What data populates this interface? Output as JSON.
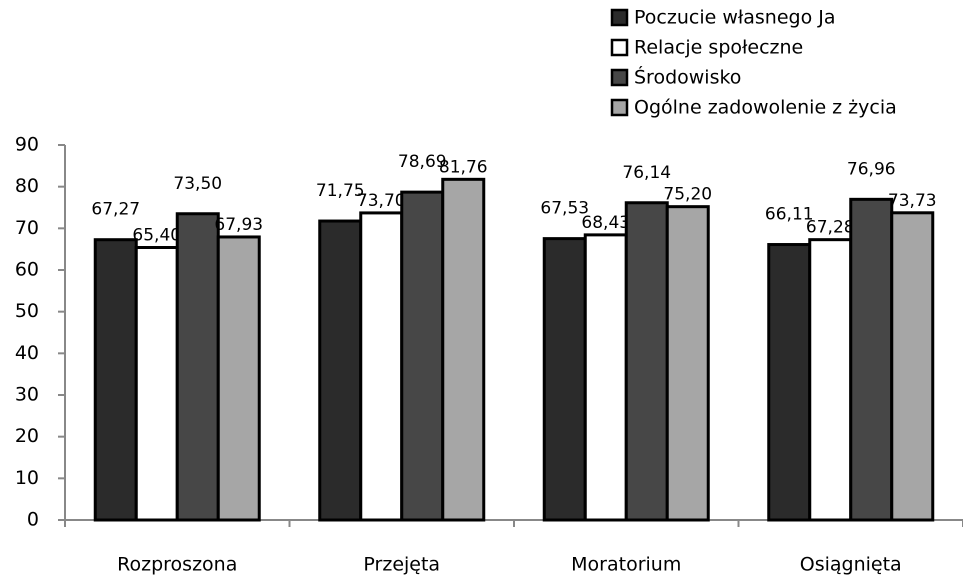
{
  "chart_data": {
    "type": "bar",
    "categories": [
      "Rozproszona",
      "Przejęta",
      "Moratorium",
      "Osiągnięta"
    ],
    "series": [
      {
        "name": "Poczucie własnego Ja",
        "color": "#2b2b2b",
        "values": [
          67.27,
          71.75,
          67.53,
          66.11
        ],
        "value_labels": [
          "67,27",
          "71,75",
          "67,53",
          "66,11"
        ]
      },
      {
        "name": "Relacje społeczne",
        "color": "#ffffff",
        "values": [
          65.4,
          73.7,
          68.43,
          67.28
        ],
        "value_labels": [
          "65,40",
          "73,70",
          "68,43",
          "67,28"
        ]
      },
      {
        "name": "Środowisko",
        "color": "#474747",
        "values": [
          73.5,
          78.69,
          76.14,
          76.96
        ],
        "value_labels": [
          "73,50",
          "78,69",
          "76,14",
          "76,96"
        ]
      },
      {
        "name": "Ogólne zadowolenie z życia",
        "color": "#a6a6a6",
        "values": [
          67.93,
          81.76,
          75.2,
          73.73
        ],
        "value_labels": [
          "67,93",
          "81,76",
          "75,20",
          "73,73"
        ]
      }
    ],
    "ylim": [
      0,
      90
    ],
    "yticks": [
      0,
      10,
      20,
      30,
      40,
      50,
      60,
      70,
      80,
      90
    ],
    "grid": false,
    "legend": "top-right"
  }
}
